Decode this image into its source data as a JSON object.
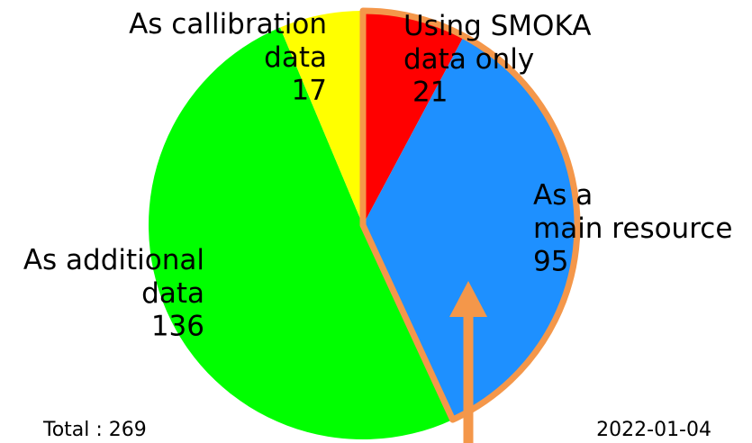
{
  "chart_data": {
    "type": "pie",
    "categories": [
      "Using SMOKA data only",
      "As a main resource",
      "As additional data",
      "As callibration data"
    ],
    "values": [
      21,
      95,
      136,
      17
    ],
    "colors": [
      "#ff0000",
      "#1e90ff",
      "#00ff00",
      "#ffff00"
    ],
    "highlight_color": "#f4974a",
    "total_label": "Total : 269",
    "date": "2022-01-04"
  }
}
